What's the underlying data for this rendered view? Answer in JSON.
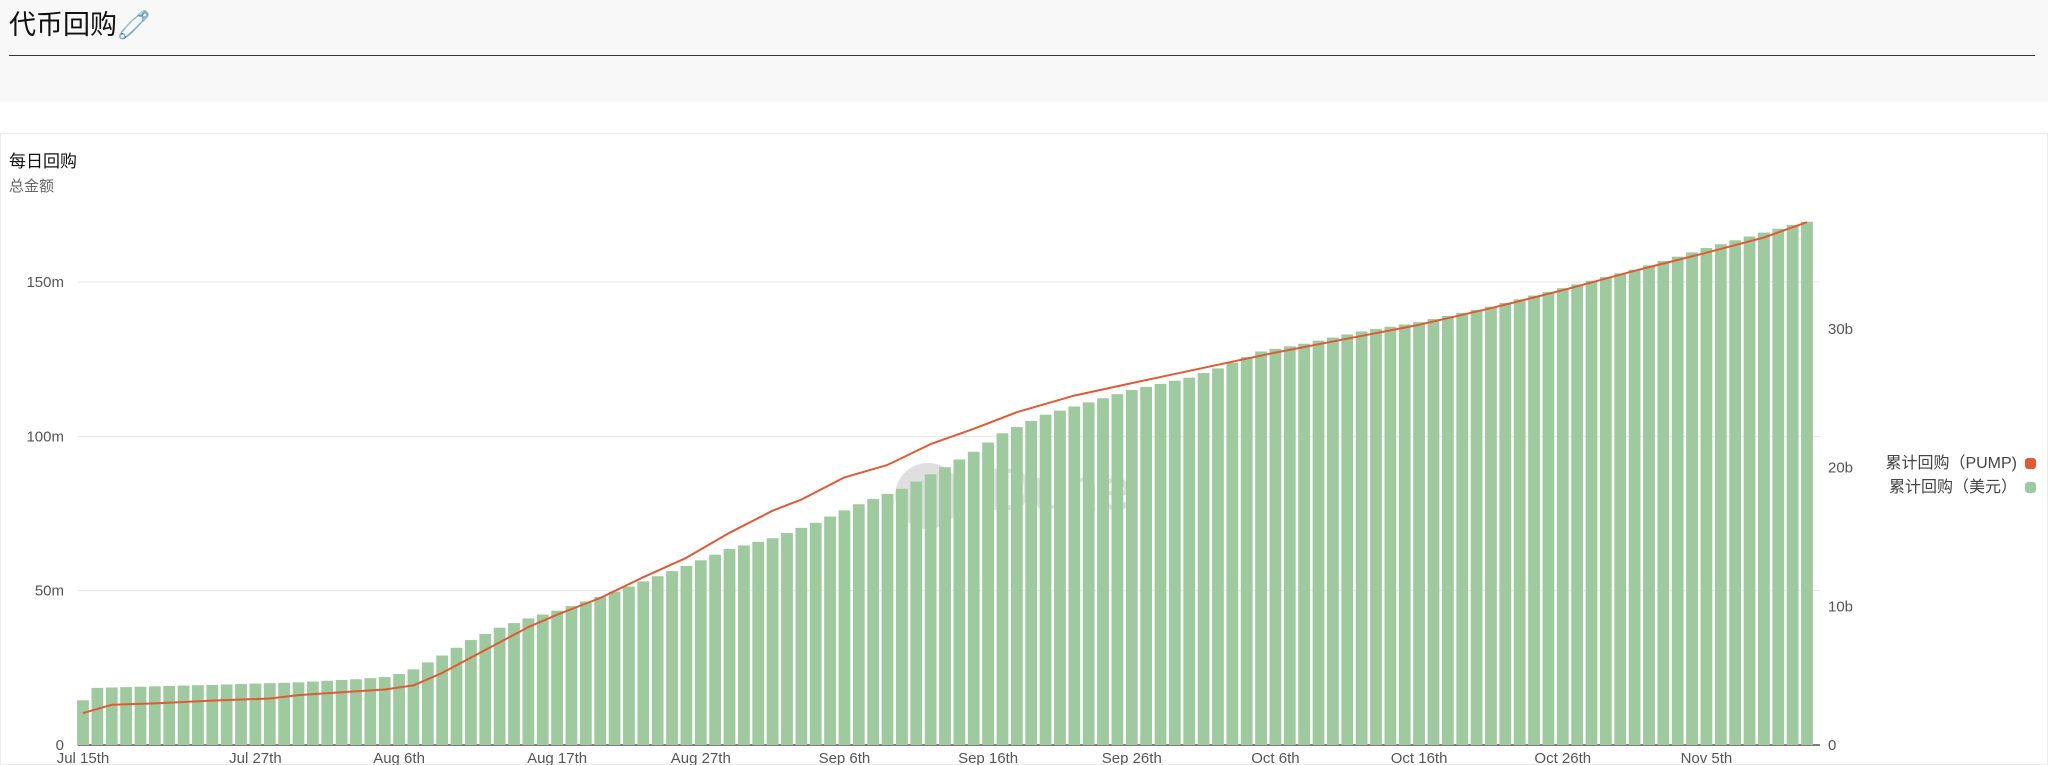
{
  "page": {
    "title": "代币回购🧷"
  },
  "watermark": {
    "text": "Dune"
  },
  "chart_data": {
    "type": "bar",
    "title": "每日回购",
    "subtitle": "总金额",
    "xlabel": "",
    "ylabel": "",
    "x_start": "2025-07-15",
    "x_end": "2025-11-12",
    "x_ticks": [
      "Jul 15th",
      "Jul 27th",
      "Aug 6th",
      "Aug 17th",
      "Aug 27th",
      "Sep 6th",
      "Sep 16th",
      "Sep 26th",
      "Oct 6th",
      "Oct 16th",
      "Oct 26th",
      "Nov 5th"
    ],
    "y_left": {
      "ticks": [
        "0",
        "50m",
        "100m",
        "150m"
      ],
      "tick_values": [
        0,
        50,
        100,
        150
      ],
      "unit": "m",
      "ylim": [
        0,
        180
      ]
    },
    "y_right": {
      "ticks": [
        "0",
        "10b",
        "20b",
        "30b"
      ],
      "tick_values": [
        0,
        10,
        20,
        30
      ],
      "unit": "b",
      "ylim": [
        0,
        40
      ]
    },
    "grid": true,
    "legend_position": "right",
    "series": [
      {
        "name": "累计回购（PUMP)",
        "type": "line",
        "axis": "right",
        "color": "#e05a35",
        "unit": "b",
        "points": [
          [
            "2025-07-15",
            2.3
          ],
          [
            "2025-07-17",
            2.9
          ],
          [
            "2025-07-20",
            3.0
          ],
          [
            "2025-07-24",
            3.2
          ],
          [
            "2025-07-28",
            3.35
          ],
          [
            "2025-07-30",
            3.6
          ],
          [
            "2025-08-02",
            3.8
          ],
          [
            "2025-08-05",
            4.0
          ],
          [
            "2025-08-07",
            4.3
          ],
          [
            "2025-08-09",
            5.2
          ],
          [
            "2025-08-11",
            6.3
          ],
          [
            "2025-08-13",
            7.4
          ],
          [
            "2025-08-15",
            8.5
          ],
          [
            "2025-08-17",
            9.4
          ],
          [
            "2025-08-20",
            10.6
          ],
          [
            "2025-08-23",
            12.1
          ],
          [
            "2025-08-26",
            13.5
          ],
          [
            "2025-08-29",
            15.3
          ],
          [
            "2025-09-01",
            16.9
          ],
          [
            "2025-09-03",
            17.7
          ],
          [
            "2025-09-06",
            19.3
          ],
          [
            "2025-09-09",
            20.2
          ],
          [
            "2025-09-12",
            21.7
          ],
          [
            "2025-09-15",
            22.8
          ],
          [
            "2025-09-18",
            24.0
          ],
          [
            "2025-09-22",
            25.2
          ],
          [
            "2025-09-26",
            26.1
          ],
          [
            "2025-10-01",
            27.2
          ],
          [
            "2025-10-06",
            28.3
          ],
          [
            "2025-10-11",
            29.3
          ],
          [
            "2025-10-16",
            30.3
          ],
          [
            "2025-10-21",
            31.5
          ],
          [
            "2025-10-26",
            32.8
          ],
          [
            "2025-10-31",
            34.2
          ],
          [
            "2025-11-05",
            35.5
          ],
          [
            "2025-11-09",
            36.6
          ],
          [
            "2025-11-12",
            37.7
          ]
        ]
      },
      {
        "name": "累计回购（美元）",
        "type": "bar",
        "axis": "left",
        "color": "#9fc99f",
        "unit": "m",
        "points": [
          [
            "2025-07-15",
            14.5
          ],
          [
            "2025-07-16",
            18.5
          ],
          [
            "2025-07-20",
            19.0
          ],
          [
            "2025-07-25",
            19.6
          ],
          [
            "2025-07-30",
            20.3
          ],
          [
            "2025-08-03",
            21.3
          ],
          [
            "2025-08-05",
            22.0
          ],
          [
            "2025-08-06",
            23.0
          ],
          [
            "2025-08-07",
            24.5
          ],
          [
            "2025-08-09",
            29.0
          ],
          [
            "2025-08-11",
            34.0
          ],
          [
            "2025-08-13",
            38.0
          ],
          [
            "2025-08-15",
            41.0
          ],
          [
            "2025-08-17",
            43.5
          ],
          [
            "2025-08-20",
            48.0
          ],
          [
            "2025-08-23",
            53.0
          ],
          [
            "2025-08-26",
            58.0
          ],
          [
            "2025-08-29",
            63.5
          ],
          [
            "2025-09-01",
            67.0
          ],
          [
            "2025-09-04",
            72.0
          ],
          [
            "2025-09-07",
            78.0
          ],
          [
            "2025-09-10",
            83.0
          ],
          [
            "2025-09-13",
            90.0
          ],
          [
            "2025-09-15",
            95.0
          ],
          [
            "2025-09-17",
            101.0
          ],
          [
            "2025-09-20",
            107.0
          ],
          [
            "2025-09-23",
            111.0
          ],
          [
            "2025-09-26",
            115.0
          ],
          [
            "2025-09-30",
            119.0
          ],
          [
            "2025-10-02",
            122.0
          ],
          [
            "2025-10-05",
            127.5
          ],
          [
            "2025-10-08",
            130.0
          ],
          [
            "2025-10-12",
            134.0
          ],
          [
            "2025-10-16",
            137.0
          ],
          [
            "2025-10-21",
            142.0
          ],
          [
            "2025-10-26",
            148.0
          ],
          [
            "2025-10-31",
            154.0
          ],
          [
            "2025-11-05",
            161.0
          ],
          [
            "2025-11-09",
            166.0
          ],
          [
            "2025-11-11",
            168.5
          ],
          [
            "2025-11-12",
            169.5
          ]
        ]
      }
    ]
  }
}
